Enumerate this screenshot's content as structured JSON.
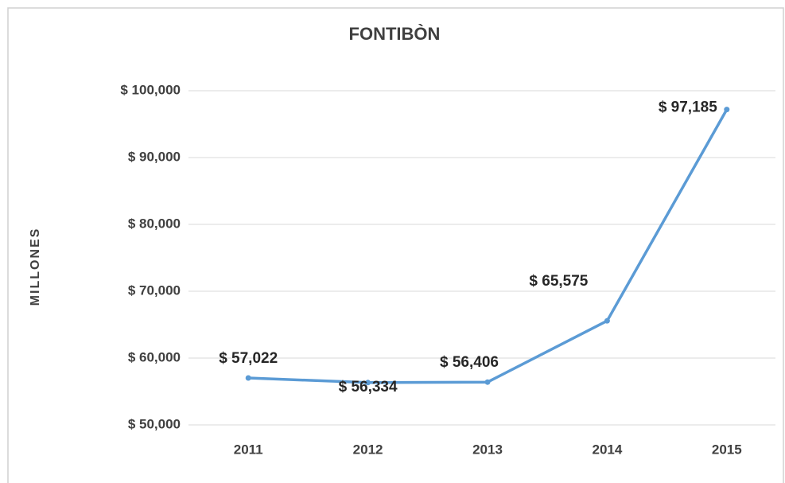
{
  "chart_data": {
    "type": "line",
    "title": "FONTIBÒN",
    "y_label": "MILLONES",
    "categories": [
      "2011",
      "2012",
      "2013",
      "2014",
      "2015"
    ],
    "series": [
      {
        "name": "FONTIBÒN",
        "color": "#5b9bd5",
        "values": [
          57022,
          56334,
          56406,
          65575,
          97185
        ],
        "value_labels": [
          "$ 57,022",
          "$ 56,334",
          "$ 56,406",
          "$ 65,575",
          "$ 97,185"
        ]
      }
    ],
    "ylim": [
      50000,
      100000
    ],
    "yticks": [
      {
        "value": 50000,
        "label": "$ 50,000"
      },
      {
        "value": 60000,
        "label": "$ 60,000"
      },
      {
        "value": 70000,
        "label": "$ 70,000"
      },
      {
        "value": 80000,
        "label": "$ 80,000"
      },
      {
        "value": 90000,
        "label": "$ 90,000"
      },
      {
        "value": 100000,
        "label": "$ 100,000"
      }
    ],
    "grid": true
  }
}
